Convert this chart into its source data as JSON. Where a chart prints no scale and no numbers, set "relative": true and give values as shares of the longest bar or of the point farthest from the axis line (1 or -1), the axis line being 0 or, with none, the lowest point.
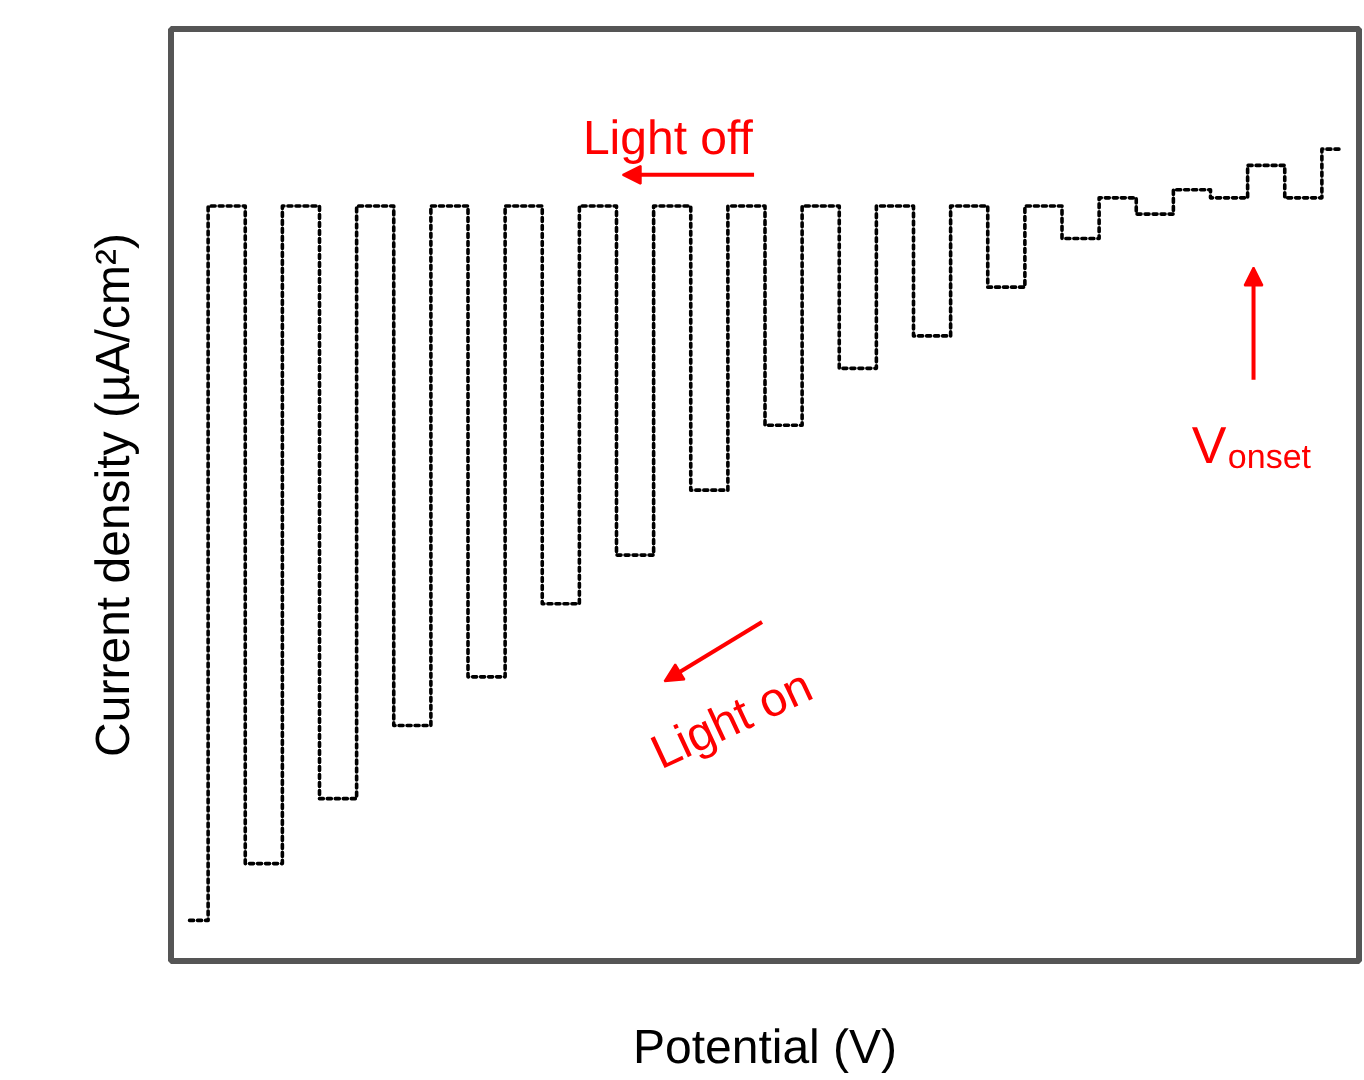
{
  "chart_data": {
    "type": "step",
    "relative": true,
    "xlabel": "Potential (V)",
    "ylabel": "Current density (µA/cm²)",
    "line_style": "dotted",
    "marker": "none",
    "categories": [
      null,
      null,
      null,
      null,
      null,
      null,
      null,
      null,
      null,
      null,
      null,
      null,
      null,
      null,
      null,
      null,
      null,
      null,
      null,
      null,
      null,
      null,
      null,
      null,
      null,
      null,
      null,
      null,
      null,
      null,
      null,
      null
    ],
    "series": [
      {
        "color": "#000000",
        "values": [
          0.05,
          0.93,
          0.12,
          0.93,
          0.2,
          0.93,
          0.29,
          0.93,
          0.35,
          0.93,
          0.44,
          0.93,
          0.5,
          0.93,
          0.58,
          0.93,
          0.66,
          0.93,
          0.73,
          0.93,
          0.77,
          0.93,
          0.83,
          0.93,
          0.89,
          0.94,
          0.92,
          0.95,
          0.94,
          0.98,
          0.94,
          1.0
        ]
      }
    ],
    "annotations": [
      "Light off",
      "Light on",
      "V$_{onset}$"
    ]
  }
}
